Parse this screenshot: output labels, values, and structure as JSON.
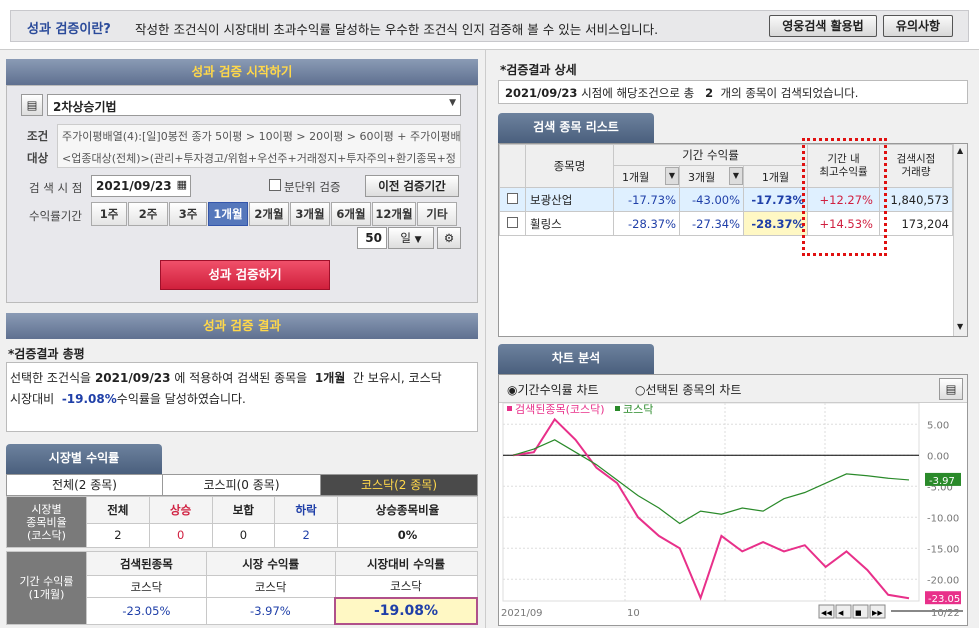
{
  "top": {
    "question": "성과 검증이란?",
    "description": "작성한 조건식이 시장대비 초과수익률 달성하는 우수한 조건식 인지 검증해 볼 수 있는 서비스입니다.",
    "btn_usage": "영웅검색 활용법",
    "btn_notice": "유의사항"
  },
  "start": {
    "title": "성과 검증 시작하기",
    "condition_name": "2차상승기법",
    "cond_label": "조건",
    "target_label": "대상",
    "cond_text": "주가이평배열(4):[일]0봉전 종가 5이평 > 10이평 > 20이평 > 60이평 + 주가이평배",
    "target_text": "<업종대상(전체)>(관리+투자경고/위험+우선주+거래정지+투자주의+환기종목+정",
    "date_label": "검 색 시 점",
    "date_value": "2021/09/23",
    "minute_label": "분단위 검증",
    "prev_period_btn": "이전 검증기간",
    "period_label": "수익률기간",
    "periods": [
      "1주",
      "2주",
      "3주",
      "1개월",
      "2개월",
      "3개월",
      "6개월",
      "12개월",
      "기타"
    ],
    "active_period": "1개월",
    "count_value": "50",
    "count_unit": "일",
    "run_btn": "성과 검증하기"
  },
  "result": {
    "title": "성과 검증 결과",
    "summary_title": "*검증결과 총평",
    "summary_pre": "선택한 조건식을",
    "summary_date": "2021/09/23",
    "summary_mid": "에 적용하여 검색된 종목을",
    "summary_period": "1개월",
    "summary_post": "간 보유시, 코스닥",
    "summary_line2_pre": "시장대비",
    "summary_pct": "-19.08%",
    "summary_line2_post": "수익률을 달성하였습니다."
  },
  "market": {
    "tab": "시장별 수익률",
    "subtabs": [
      "전체(2 종목)",
      "코스피(0 종목)",
      "코스닥(2 종목)"
    ],
    "row1_head": "시장별\n종목비율\n(코스닥)",
    "row1_cols": [
      "전체",
      "상승",
      "보합",
      "하락",
      "상승종목비율"
    ],
    "row1_vals": [
      "2",
      "0",
      "0",
      "2",
      "0%"
    ],
    "row2_head": "기간 수익률\n(1개월)",
    "row2_cols": [
      "검색된종목",
      "시장 수익률",
      "시장대비 수익률"
    ],
    "row2_sub": [
      "코스닥",
      "코스닥",
      "코스닥"
    ],
    "row2_vals": [
      "-23.05%",
      "-3.97%",
      "-19.08%"
    ]
  },
  "detail": {
    "title": "*검증결과 상세",
    "date": "2021/09/23",
    "text_pre": "시점에 해당조건으로 총",
    "count": "2",
    "text_post": "개의 종목이 검색되었습니다."
  },
  "stocklist": {
    "tab": "검색 종목 리스트",
    "headers": {
      "name": "종목명",
      "period_ret": "기간 수익률",
      "max_ret": "기간 내\n최고수익률",
      "volume": "검색시점\n거래량"
    },
    "sub": [
      "1개월",
      "3개월",
      "1개월"
    ],
    "rows": [
      {
        "name": "보광산업",
        "r1": "-17.73%",
        "r3": "-43.00%",
        "r1b": "-17.73%",
        "max": "+12.27%",
        "vol": "1,840,573"
      },
      {
        "name": "휠링스",
        "r1": "-28.37%",
        "r3": "-27.34%",
        "r1b": "-28.37%",
        "max": "+14.53%",
        "vol": "173,204"
      }
    ]
  },
  "chart": {
    "tab": "차트 분석",
    "radio1": "기간수익률 차트",
    "radio2": "선택된 종목의 차트",
    "legend1": "검색된종목(코스닥)",
    "legend2": "코스닥",
    "yticks": [
      "5.00",
      "0.00",
      "-5.00",
      "-10.00",
      "-15.00",
      "-20.00"
    ],
    "xticks": [
      "2021/09",
      "10",
      "10/22"
    ],
    "end_label_green": "-3.97",
    "end_label_pink": "-23.05"
  },
  "chart_data": {
    "type": "line",
    "series": [
      {
        "name": "검색된종목(코스닥)",
        "color": "#e8308a",
        "values": [
          0,
          0.5,
          5.8,
          2.5,
          -2,
          -4.5,
          -10,
          -13,
          -15,
          -23,
          -13,
          -15.5,
          -14,
          -15.5,
          -14.5,
          -18,
          -15.5,
          -18.5,
          -22.5,
          -23.05
        ]
      },
      {
        "name": "코스닥",
        "color": "#2a8a2a",
        "values": [
          0,
          1,
          2.5,
          0.5,
          -1.5,
          -4,
          -6.5,
          -8.5,
          -11,
          -9,
          -9.5,
          -8.5,
          -9,
          -7,
          -6,
          -4.5,
          -3,
          -3.3,
          -3.7,
          -3.97
        ]
      }
    ],
    "ylim": [
      -23.5,
      6.5
    ]
  }
}
